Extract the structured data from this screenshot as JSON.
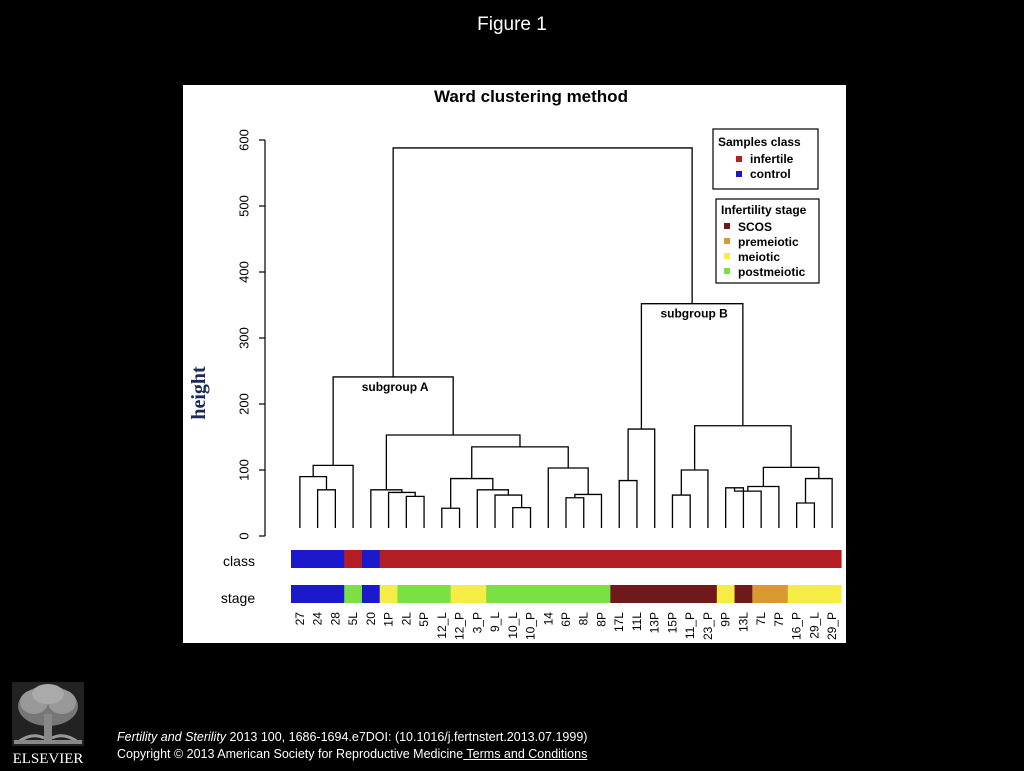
{
  "figure_label": "Figure 1",
  "chart_data": {
    "type": "dendrogram",
    "title": "Ward clustering method",
    "ylabel": "height",
    "ylim": [
      0,
      600
    ],
    "yticks": [
      "0",
      "100",
      "200",
      "300",
      "400",
      "500",
      "600"
    ],
    "leaves": [
      "27",
      "24",
      "28",
      "5L",
      "20",
      "1P",
      "2L",
      "5P",
      "12_L",
      "12_P",
      "3_P",
      "9_L",
      "10_L",
      "10_P",
      "14",
      "6P",
      "8L",
      "8P",
      "17L",
      "11L",
      "13P",
      "15P",
      "11_P",
      "23_P",
      "9P",
      "13L",
      "7L",
      "7P",
      "16_P",
      "29_L",
      "29_P"
    ],
    "merges": [
      {
        "a": "L24",
        "b": "L28",
        "h": 70
      },
      {
        "a": "L27",
        "b": "M1",
        "h": 90
      },
      {
        "a": "M2",
        "b": "L5L",
        "h": 107
      },
      {
        "a": "L2L",
        "b": "L5P",
        "h": 60
      },
      {
        "a": "L1P",
        "b": "M4",
        "h": 66
      },
      {
        "a": "L20",
        "b": "M5",
        "h": 70
      },
      {
        "a": "L10_L",
        "b": "L10_P",
        "h": 43
      },
      {
        "a": "L9_L",
        "b": "M7",
        "h": 62
      },
      {
        "a": "L3_P",
        "b": "M8",
        "h": 70
      },
      {
        "a": "L12_L",
        "b": "L12_P",
        "h": 42
      },
      {
        "a": "M10",
        "b": "M9",
        "h": 87
      },
      {
        "a": "L6P",
        "b": "L8L",
        "h": 58
      },
      {
        "a": "M12",
        "b": "L8P",
        "h": 63
      },
      {
        "a": "L14",
        "b": "M13",
        "h": 103
      },
      {
        "a": "M11",
        "b": "M14",
        "h": 135
      },
      {
        "a": "M6",
        "b": "M15",
        "h": 153
      },
      {
        "a": "M3",
        "b": "M16",
        "h": 241
      },
      {
        "a": "L17L",
        "b": "L11L",
        "h": 84
      },
      {
        "a": "L13P",
        "b": "M18",
        "h": 162
      },
      {
        "a": "L15P",
        "b": "L11_P",
        "h": 62
      },
      {
        "a": "M20",
        "b": "L23_P",
        "h": 100
      },
      {
        "a": "L9P",
        "b": "L13L",
        "h": 73
      },
      {
        "a": "M22",
        "b": "L7L",
        "h": 68
      },
      {
        "a": "M23",
        "b": "L7P",
        "h": 75
      },
      {
        "a": "L16_P",
        "b": "L29_L",
        "h": 50
      },
      {
        "a": "M25",
        "b": "L29_P",
        "h": 87
      },
      {
        "a": "M24",
        "b": "M26",
        "h": 104
      },
      {
        "a": "M21",
        "b": "M27",
        "h": 167
      },
      {
        "a": "M19",
        "b": "M28",
        "h": 352
      },
      {
        "a": "M17",
        "b": "M29",
        "h": 588
      }
    ],
    "subgroup_labels": [
      {
        "text": "subgroup A",
        "merge": "M17"
      },
      {
        "text": "subgroup B",
        "merge": "M29"
      }
    ],
    "class_row": {
      "label": "class",
      "values": [
        "control",
        "control",
        "control",
        "infertile",
        "control",
        "infertile",
        "infertile",
        "infertile",
        "infertile",
        "infertile",
        "infertile",
        "infertile",
        "infertile",
        "infertile",
        "infertile",
        "infertile",
        "infertile",
        "infertile",
        "infertile",
        "infertile",
        "infertile",
        "infertile",
        "infertile",
        "infertile",
        "infertile",
        "infertile",
        "infertile",
        "infertile",
        "infertile",
        "infertile",
        "infertile"
      ]
    },
    "stage_row": {
      "label": "stage",
      "values": [
        "control",
        "control",
        "control",
        "postmeiotic",
        "control",
        "meiotic",
        "postmeiotic",
        "postmeiotic",
        "postmeiotic",
        "meiotic",
        "meiotic",
        "postmeiotic",
        "postmeiotic",
        "postmeiotic",
        "postmeiotic",
        "postmeiotic",
        "postmeiotic",
        "postmeiotic",
        "SCOS",
        "SCOS",
        "SCOS",
        "SCOS",
        "SCOS",
        "SCOS",
        "meiotic",
        "SCOS",
        "premeiotic",
        "premeiotic",
        "meiotic",
        "meiotic",
        "meiotic"
      ]
    },
    "legend_class": {
      "title": "Samples class",
      "items": [
        {
          "label": "infertile",
          "color": "#b21e23"
        },
        {
          "label": "control",
          "color": "#1c19cc"
        }
      ]
    },
    "legend_stage": {
      "title": "Infertility stage",
      "items": [
        {
          "label": "SCOS",
          "color": "#6e1a1a"
        },
        {
          "label": "premeiotic",
          "color": "#d89a2e"
        },
        {
          "label": "meiotic",
          "color": "#f5ec45"
        },
        {
          "label": "postmeiotic",
          "color": "#7ce045"
        }
      ]
    },
    "colors": {
      "infertile": "#b21e23",
      "control": "#1c19cc",
      "SCOS": "#6e1a1a",
      "premeiotic": "#d89a2e",
      "meiotic": "#f5ec45",
      "postmeiotic": "#7ce045"
    }
  },
  "citation": {
    "journal": "Fertility and Sterility",
    "details": " 2013 100, 1686-1694.e7DOI: (10.1016/j.fertnstert.2013.07.1999)",
    "copyright": "Copyright © 2013 American Society for Reproductive Medicine",
    "terms_link": " Terms and Conditions"
  },
  "logo": {
    "brand_text": "ELSEVIER"
  }
}
